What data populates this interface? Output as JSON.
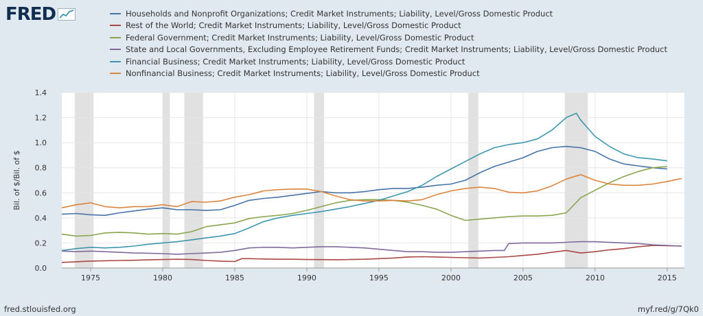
{
  "header": {
    "logo_text": "FRED",
    "logo_icon": "trend-line-icon"
  },
  "footer": {
    "source": "fred.stlouisfed.org",
    "permalink": "myf.red/g/7Qk0"
  },
  "chart_data": {
    "type": "line",
    "title": "",
    "xlabel": "",
    "ylabel": "Bil. of $/Bil. of $",
    "xlim": [
      1973.0,
      2016.2
    ],
    "ylim": [
      0.0,
      1.4
    ],
    "yticks": [
      0.0,
      0.2,
      0.4,
      0.6,
      0.8,
      1.0,
      1.2,
      1.4
    ],
    "ytick_labels": [
      "0.0",
      "0.2",
      "0.4",
      "0.6",
      "0.8",
      "1.0",
      "1.2",
      "1.4"
    ],
    "xticks": [
      1975,
      1980,
      1985,
      1990,
      1995,
      2000,
      2005,
      2010,
      2015
    ],
    "xtick_labels": [
      "1975",
      "1980",
      "1985",
      "1990",
      "1995",
      "2000",
      "2005",
      "2010",
      "2015"
    ],
    "grid": true,
    "legend_position": "top",
    "recessions": [
      [
        1973.9,
        1975.2
      ],
      [
        1980.0,
        1980.5
      ],
      [
        1981.5,
        1982.8
      ],
      [
        1990.5,
        1991.2
      ],
      [
        2001.2,
        2001.9
      ],
      [
        2007.9,
        2009.5
      ]
    ],
    "series": [
      {
        "name": "Households and Nonprofit Organizations; Credit Market Instruments; Liability, Level/Gross Domestic Product",
        "color": "#4572a7",
        "x": [
          1973,
          1974,
          1975,
          1976,
          1977,
          1978,
          1979,
          1980,
          1981,
          1982,
          1983,
          1984,
          1985,
          1986,
          1987,
          1988,
          1989,
          1990,
          1991,
          1992,
          1993,
          1994,
          1995,
          1996,
          1997,
          1998,
          1999,
          2000,
          2001,
          2002,
          2003,
          2004,
          2005,
          2006,
          2007,
          2008,
          2009,
          2010,
          2011,
          2012,
          2013,
          2014,
          2015
        ],
        "values": [
          0.43,
          0.435,
          0.425,
          0.42,
          0.44,
          0.455,
          0.47,
          0.48,
          0.465,
          0.465,
          0.46,
          0.465,
          0.5,
          0.54,
          0.555,
          0.565,
          0.58,
          0.595,
          0.61,
          0.6,
          0.6,
          0.61,
          0.625,
          0.635,
          0.635,
          0.645,
          0.66,
          0.67,
          0.7,
          0.76,
          0.81,
          0.845,
          0.88,
          0.93,
          0.96,
          0.97,
          0.96,
          0.93,
          0.87,
          0.83,
          0.815,
          0.8,
          0.79
        ]
      },
      {
        "name": "Rest of the World; Credit Market Instruments; Liability, Level/Gross Domestic Product",
        "color": "#aa4643",
        "x": [
          1973,
          1974,
          1975,
          1976,
          1977,
          1978,
          1979,
          1980,
          1981,
          1982,
          1983,
          1984,
          1985,
          1985.5,
          1986,
          1987,
          1988,
          1989,
          1990,
          1991,
          1992,
          1993,
          1994,
          1995,
          1996,
          1997,
          1998,
          1999,
          2000,
          2001,
          2002,
          2003,
          2004,
          2005,
          2006,
          2007,
          2008,
          2009,
          2010,
          2011,
          2012,
          2013,
          2014,
          2015,
          2016
        ],
        "values": [
          0.045,
          0.05,
          0.055,
          0.058,
          0.06,
          0.062,
          0.065,
          0.068,
          0.07,
          0.068,
          0.06,
          0.055,
          0.052,
          0.075,
          0.075,
          0.072,
          0.07,
          0.07,
          0.068,
          0.067,
          0.066,
          0.068,
          0.07,
          0.075,
          0.08,
          0.088,
          0.09,
          0.088,
          0.085,
          0.082,
          0.08,
          0.085,
          0.09,
          0.1,
          0.11,
          0.125,
          0.14,
          0.12,
          0.13,
          0.145,
          0.155,
          0.17,
          0.18,
          0.178,
          0.175
        ]
      },
      {
        "name": "Federal Government; Credit Market Instruments; Liability, Level/Gross Domestic Product",
        "color": "#89a54e",
        "x": [
          1973,
          1974,
          1975,
          1976,
          1977,
          1978,
          1979,
          1980,
          1981,
          1982,
          1983,
          1984,
          1985,
          1986,
          1987,
          1988,
          1989,
          1990,
          1991,
          1992,
          1993,
          1994,
          1995,
          1996,
          1997,
          1998,
          1999,
          2000,
          2001,
          2002,
          2003,
          2004,
          2005,
          2006,
          2007,
          2008,
          2009,
          2010,
          2011,
          2012,
          2013,
          2014,
          2015
        ],
        "values": [
          0.27,
          0.255,
          0.26,
          0.28,
          0.285,
          0.28,
          0.27,
          0.275,
          0.27,
          0.29,
          0.33,
          0.345,
          0.36,
          0.395,
          0.41,
          0.42,
          0.435,
          0.46,
          0.49,
          0.52,
          0.54,
          0.545,
          0.545,
          0.54,
          0.525,
          0.5,
          0.47,
          0.42,
          0.38,
          0.39,
          0.4,
          0.41,
          0.415,
          0.415,
          0.42,
          0.44,
          0.56,
          0.62,
          0.68,
          0.73,
          0.77,
          0.8,
          0.81
        ]
      },
      {
        "name": "State and Local Governments, Excluding Employee Retirement Funds; Credit Market Instruments; Liability, Level/Gross Domestic Product",
        "color": "#80699b",
        "x": [
          1973,
          1974,
          1975,
          1976,
          1977,
          1978,
          1979,
          1980,
          1981,
          1982,
          1983,
          1984,
          1985,
          1986,
          1987,
          1988,
          1989,
          1990,
          1991,
          1992,
          1993,
          1994,
          1995,
          1996,
          1997,
          1998,
          1999,
          2000,
          2001,
          2002,
          2003,
          2003.7,
          2004,
          2005,
          2006,
          2007,
          2008,
          2009,
          2010,
          2011,
          2012,
          2013,
          2014,
          2015,
          2016
        ],
        "values": [
          0.135,
          0.13,
          0.135,
          0.13,
          0.125,
          0.12,
          0.118,
          0.115,
          0.11,
          0.115,
          0.12,
          0.125,
          0.14,
          0.16,
          0.165,
          0.165,
          0.16,
          0.165,
          0.17,
          0.17,
          0.165,
          0.16,
          0.15,
          0.14,
          0.13,
          0.13,
          0.125,
          0.125,
          0.13,
          0.135,
          0.14,
          0.14,
          0.195,
          0.2,
          0.2,
          0.2,
          0.205,
          0.21,
          0.21,
          0.205,
          0.2,
          0.195,
          0.185,
          0.18,
          0.175
        ]
      },
      {
        "name": "Financial Business; Credit Market Instruments; Liability, Level/Gross Domestic Product",
        "color": "#3d96ae",
        "x": [
          1973,
          1974,
          1975,
          1976,
          1977,
          1978,
          1979,
          1980,
          1981,
          1982,
          1983,
          1984,
          1985,
          1986,
          1987,
          1988,
          1989,
          1990,
          1991,
          1992,
          1993,
          1994,
          1995,
          1996,
          1997,
          1998,
          1999,
          2000,
          2001,
          2002,
          2003,
          2004,
          2005,
          2006,
          2007,
          2008,
          2008.7,
          2009,
          2010,
          2011,
          2012,
          2013,
          2014,
          2015
        ],
        "values": [
          0.14,
          0.155,
          0.165,
          0.16,
          0.165,
          0.175,
          0.19,
          0.2,
          0.21,
          0.225,
          0.24,
          0.255,
          0.275,
          0.32,
          0.37,
          0.4,
          0.42,
          0.435,
          0.45,
          0.47,
          0.49,
          0.515,
          0.54,
          0.575,
          0.61,
          0.66,
          0.73,
          0.79,
          0.85,
          0.91,
          0.96,
          0.985,
          1.0,
          1.03,
          1.1,
          1.2,
          1.235,
          1.18,
          1.05,
          0.97,
          0.91,
          0.88,
          0.87,
          0.855
        ]
      },
      {
        "name": "Nonfinancial Business; Credit Market Instruments; Liability, Level/Gross Domestic Product",
        "color": "#db843d",
        "x": [
          1973,
          1974,
          1975,
          1976,
          1977,
          1978,
          1979,
          1980,
          1981,
          1982,
          1983,
          1984,
          1985,
          1986,
          1987,
          1988,
          1989,
          1990,
          1991,
          1992,
          1993,
          1994,
          1995,
          1996,
          1997,
          1998,
          1999,
          2000,
          2001,
          2002,
          2003,
          2004,
          2005,
          2006,
          2007,
          2008,
          2009,
          2010,
          2011,
          2012,
          2013,
          2014,
          2015,
          2016
        ],
        "values": [
          0.48,
          0.505,
          0.52,
          0.49,
          0.48,
          0.49,
          0.49,
          0.505,
          0.49,
          0.53,
          0.525,
          0.535,
          0.565,
          0.585,
          0.615,
          0.625,
          0.63,
          0.63,
          0.61,
          0.575,
          0.545,
          0.535,
          0.535,
          0.54,
          0.535,
          0.545,
          0.585,
          0.615,
          0.635,
          0.645,
          0.635,
          0.605,
          0.6,
          0.615,
          0.655,
          0.71,
          0.745,
          0.7,
          0.67,
          0.66,
          0.66,
          0.67,
          0.69,
          0.715
        ]
      }
    ]
  }
}
